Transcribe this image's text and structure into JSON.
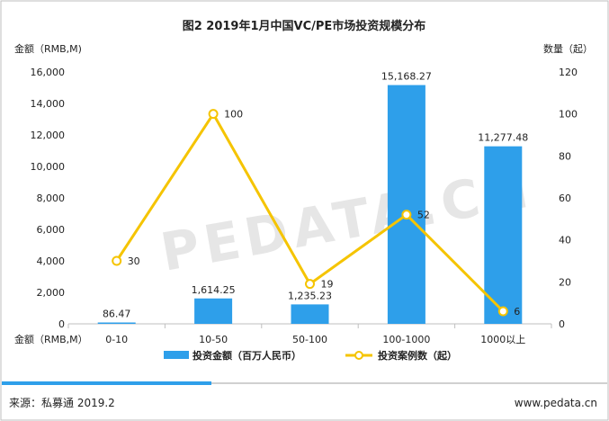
{
  "colors": {
    "bar": "#2e9fea",
    "line": "#f5c400",
    "marker_fill": "#ffffff",
    "footer_accent": "#2e9fea",
    "border": "#bfbfbf"
  },
  "chart_data": {
    "type": "bar",
    "title": "图2 2019年1月中国VC/PE市场投资规模分布",
    "categories": [
      "0-10",
      "10-50",
      "50-100",
      "100-1000",
      "1000以上"
    ],
    "xlabel": "金额（RMB,M）",
    "y_left_label": "金额（RMB,M)",
    "y_right_label": "数量（起）",
    "y_left_range": [
      0,
      16000
    ],
    "y_left_ticks": [
      "0",
      "2,000",
      "4,000",
      "6,000",
      "8,000",
      "10,000",
      "12,000",
      "14,000",
      "16,000"
    ],
    "y_right_range": [
      0,
      120
    ],
    "y_right_ticks": [
      "0",
      "20",
      "40",
      "60",
      "80",
      "100",
      "120"
    ],
    "grid": false,
    "legend_position": "bottom",
    "series": [
      {
        "name": "投资金额（百万人民币）",
        "type": "bar",
        "axis": "left",
        "values": [
          86.47,
          1614.25,
          1235.23,
          15168.27,
          11277.48
        ],
        "labels": [
          "86.47",
          "1,614.25",
          "1,235.23",
          "15,168.27",
          "11,277.48"
        ]
      },
      {
        "name": "投资案例数（起）",
        "type": "line",
        "axis": "right",
        "values": [
          30,
          100,
          19,
          52,
          6
        ],
        "labels": [
          "30",
          "100",
          "19",
          "52",
          "6"
        ]
      }
    ]
  },
  "watermark": "PEDATA.CN",
  "footer": {
    "source": "来源：私募通 2019.2",
    "website": "www.pedata.cn"
  }
}
